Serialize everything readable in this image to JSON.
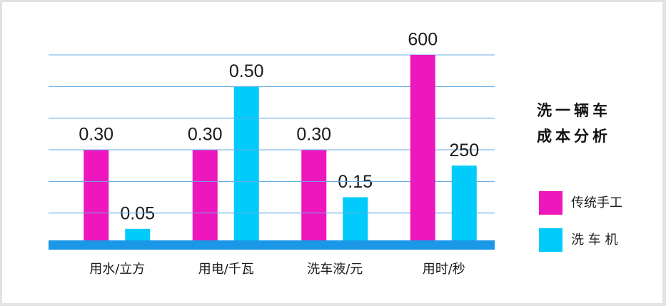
{
  "chart_data": [
    {
      "type": "bar",
      "title": "洗一辆车",
      "subtitle": "成本分析",
      "categories": [
        "用水/立方",
        "用电/千瓦",
        "洗车液/元"
      ],
      "series": [
        {
          "name": "传统手工",
          "color": "#ee16bd",
          "values": [
            0.3,
            0.3,
            0.3
          ],
          "value_labels": [
            "0.30",
            "0.30",
            "0.30"
          ]
        },
        {
          "name": "洗 车 机",
          "color": "#00cbfb",
          "values": [
            0.05,
            0.5,
            0.15
          ],
          "value_labels": [
            "0.05",
            "0.50",
            "0.15"
          ]
        }
      ],
      "ylim": [
        0,
        0.6
      ],
      "yticks": [
        0.1,
        0.2,
        0.3,
        0.4,
        0.5,
        0.6
      ],
      "grid": true
    },
    {
      "type": "bar",
      "categories": [
        "用时/秒"
      ],
      "series": [
        {
          "color": "#ee16bd",
          "values": [
            600
          ]
        },
        {
          "color": "#00cbfb",
          "values": [
            250
          ]
        }
      ],
      "ylim": [
        0,
        600
      ],
      "yticks": [
        100,
        200,
        300,
        400,
        500,
        600
      ],
      "grid": true
    }
  ]
}
